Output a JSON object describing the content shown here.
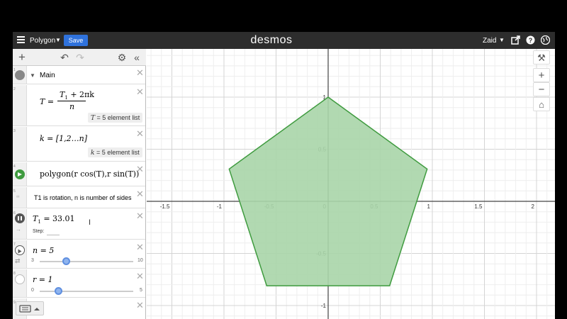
{
  "header": {
    "title": "Polygon",
    "save_label": "Save",
    "brand": "desmos",
    "user": "Zaid"
  },
  "expressions": [
    {
      "index": "1",
      "label": "Main"
    },
    {
      "index": "2",
      "lhs": "T =",
      "num": "T",
      "num_sub": "1",
      "num_rest": "+ 2πk",
      "den": "n",
      "tag_var": "T",
      "tag_text": "= 5 element list"
    },
    {
      "index": "3",
      "text": "k = [1,2…n]",
      "tag_var": "k",
      "tag_text": "= 5 element list"
    },
    {
      "index": "4",
      "text": "polygon(r cos(T),r sin(T))"
    },
    {
      "index": "5",
      "note": "T1 is rotation, n is number of sides",
      "quote": "“"
    },
    {
      "index": "6",
      "var": "T",
      "sub": "1",
      "value": "= 33.01",
      "step_label": "Step:"
    },
    {
      "index": "7",
      "text": "n = 5",
      "min": "3",
      "max": "10",
      "value": 5
    },
    {
      "index": "8",
      "text": "r = 1",
      "min": "0",
      "max": "5",
      "value": 1
    },
    {
      "index": "9"
    }
  ],
  "graph": {
    "x_ticks": [
      "-1.5",
      "-1",
      "-0.5",
      "0",
      "0.5",
      "1",
      "1.5",
      "2"
    ],
    "y_ticks": [
      "1",
      "0.5",
      "-0.5",
      "-1"
    ],
    "polygon_color": "#3f9b3f",
    "polygon_fill": "#a8d5a8"
  },
  "chart_data": {
    "type": "scatter",
    "title": "",
    "xlim": [
      -1.6,
      2.3
    ],
    "ylim": [
      -1.25,
      1.2
    ],
    "grid": true,
    "series": [
      {
        "x": [
          0.0,
          0.95,
          0.59,
          -0.59,
          -0.95
        ],
        "y": [
          1.0,
          0.31,
          -0.81,
          -0.81,
          0.31
        ]
      }
    ]
  },
  "colors": {
    "accent": "#2f72dc",
    "topbar": "#2d2d2d",
    "play_green": "#3f9b3f"
  }
}
